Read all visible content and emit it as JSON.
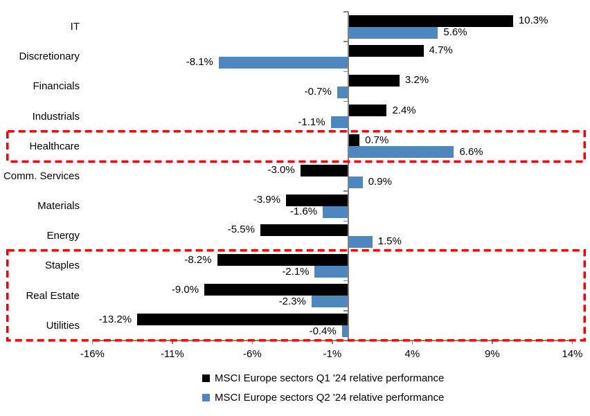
{
  "chart_data": {
    "type": "bar",
    "orientation": "horizontal",
    "title": "",
    "categories": [
      "IT",
      "Discretionary",
      "Financials",
      "Industrials",
      "Healthcare",
      "Comm. Services",
      "Materials",
      "Energy",
      "Staples",
      "Real Estate",
      "Utilities"
    ],
    "series": [
      {
        "name": "MSCI Europe sectors Q1 '24 relative performance",
        "color": "#000000",
        "values": [
          10.3,
          4.7,
          3.2,
          2.4,
          0.7,
          -3.0,
          -3.9,
          -5.5,
          -8.2,
          -9.0,
          -13.2
        ]
      },
      {
        "name": "MSCI Europe sectors Q2 '24 relative performance",
        "color": "#4E86C0",
        "values": [
          5.6,
          -8.1,
          -0.7,
          -1.1,
          6.6,
          0.9,
          -1.6,
          1.5,
          -2.1,
          -2.3,
          -0.4
        ]
      }
    ],
    "data_label_suffix": "%",
    "x_axis": {
      "tick_labels": [
        "-16%",
        "-11%",
        "-6%",
        "-1%",
        "4%",
        "9%",
        "14%"
      ],
      "tick_values": [
        -16,
        -11,
        -6,
        -1,
        4,
        9,
        14
      ],
      "range": [
        -16,
        14
      ]
    },
    "grid": false,
    "legend_position": "bottom",
    "axis_color": "#808080",
    "text_color": "#000000",
    "highlight_boxes": [
      {
        "label": "healthcare",
        "from_category": "Healthcare",
        "to_category": "Healthcare",
        "from": 4,
        "to": 4,
        "color": "#FB0000"
      },
      {
        "label": "staples-real-estate-utilities",
        "from_category": "Staples",
        "to_category": "Utilities",
        "from": 8,
        "to": 10,
        "color": "#FB0000"
      }
    ]
  }
}
